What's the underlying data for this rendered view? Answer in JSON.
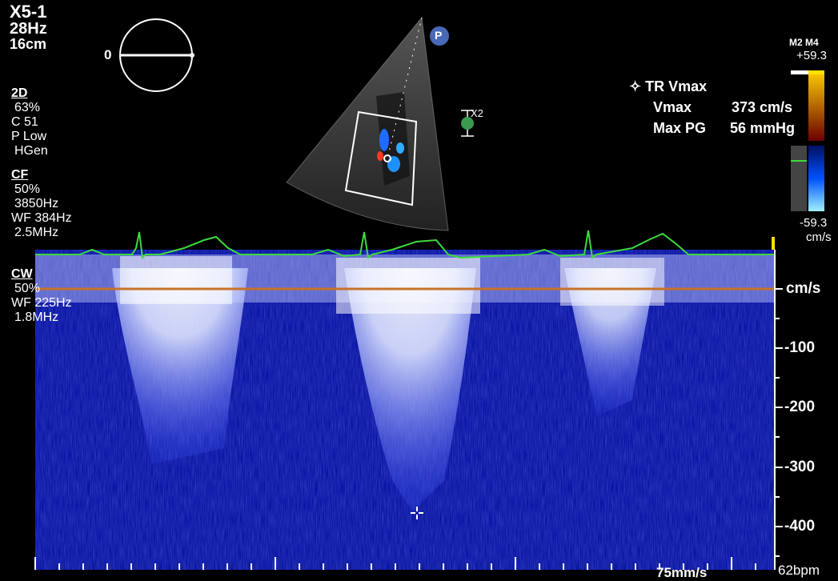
{
  "probe": {
    "name": "X5-1",
    "frame_rate": "28Hz",
    "depth": "16cm"
  },
  "orientation": {
    "angle_label": "0"
  },
  "mode_2d": {
    "title": "2D",
    "gain": "63%",
    "compress": "C 51",
    "power": "P Low",
    "freq": "HGen"
  },
  "mode_cf": {
    "title": "CF",
    "gain": "50%",
    "prf": "3850Hz",
    "wall_filter": "WF 384Hz",
    "freq": "2.5MHz"
  },
  "mode_cw": {
    "title": "CW",
    "gain": "50%",
    "wall_filter": "WF 225Hz",
    "freq": "1.8MHz"
  },
  "probe_marker": "P",
  "depth_marker": "X2",
  "measurement": {
    "title": "TR Vmax",
    "vmax_label": "Vmax",
    "vmax_value": "373 cm/s",
    "pg_label": "Max PG",
    "pg_value": "56 mmHg"
  },
  "color_scale": {
    "map_label": "M2 M4",
    "top": "+59.3",
    "bottom": "-59.3",
    "unit": "cm/s"
  },
  "velocity_axis": {
    "unit": "cm/s",
    "ticks": [
      -100,
      -200,
      -300,
      -400
    ]
  },
  "sweep_speed": "75mm/s",
  "heart_rate": "62bpm",
  "colors": {
    "doppler": "#1a2cff",
    "ecg": "#3ddc3a",
    "baseline": "#c87228",
    "yellow": "#ffe000"
  }
}
